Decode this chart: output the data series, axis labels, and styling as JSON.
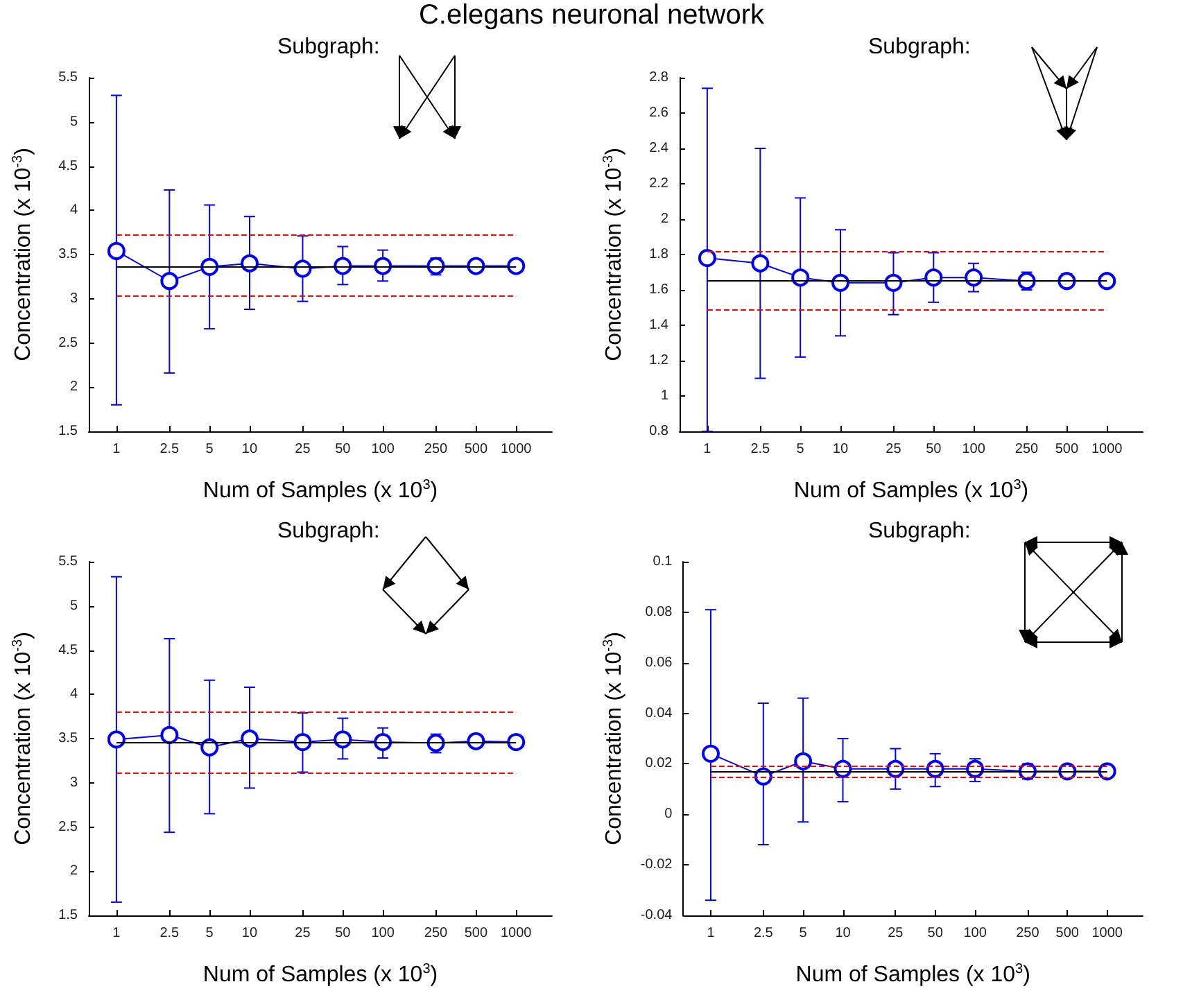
{
  "chart_data": [
    {
      "type": "line",
      "title": "C.elegans neuronal network",
      "annotations": [
        "Subgraph:"
      ],
      "xlabel": "Num of Samples (x 10$^{3}$)",
      "ylabel": "Concentration (x 10$^{-3}$)",
      "x": [
        1,
        2.5,
        5,
        10,
        25,
        50,
        100,
        250,
        500,
        1000
      ],
      "log": "x",
      "xlim": [
        0.62,
        1860
      ],
      "xticks": [
        1,
        2.5,
        5,
        10,
        25,
        50,
        100,
        250,
        500,
        1000
      ],
      "ylim": [
        1.5,
        5.5
      ],
      "yticks": [
        1.5,
        2,
        2.5,
        3,
        3.5,
        4,
        4.5,
        5,
        5.5
      ],
      "grid": false,
      "marker": "circle",
      "line_style": "solid",
      "series": [
        {
          "color": "#0000ff",
          "values": [
            3.54,
            3.2,
            3.36,
            3.4,
            3.34,
            3.37,
            3.37,
            3.37,
            3.37,
            3.37
          ],
          "errors": [
            [
              1.8,
              5.3
            ],
            [
              2.16,
              4.23
            ],
            [
              2.66,
              4.06
            ],
            [
              2.88,
              3.93
            ],
            [
              2.97,
              3.71
            ],
            [
              3.16,
              3.59
            ],
            [
              3.2,
              3.55
            ],
            [
              3.27,
              3.46
            ],
            [
              3.31,
              3.42
            ],
            [
              3.33,
              3.41
            ]
          ]
        }
      ],
      "ref_lines": [
        {
          "axis": "y",
          "value": 3.37,
          "color": "#000000",
          "line_style": "solid"
        },
        {
          "axis": "y",
          "value": 3.72,
          "color": "#ff0000",
          "line_style": "dashed"
        },
        {
          "axis": "y",
          "value": 3.04,
          "color": "#ff0000",
          "line_style": "dashed"
        }
      ]
    },
    {
      "type": "line",
      "annotations": [
        "Subgraph:"
      ],
      "xlabel": "Num of Samples (x 10$^{3}$)",
      "ylabel": "Concentration (x 10$^{-3}$)",
      "x": [
        1,
        2.5,
        5,
        10,
        25,
        50,
        100,
        250,
        500,
        1000
      ],
      "log": "x",
      "xlim": [
        0.62,
        1860
      ],
      "xticks": [
        1,
        2.5,
        5,
        10,
        25,
        50,
        100,
        250,
        500,
        1000
      ],
      "ylim": [
        0.8,
        2.8
      ],
      "yticks": [
        0.8,
        1,
        1.2,
        1.4,
        1.6,
        1.8,
        2,
        2.2,
        2.4,
        2.6,
        2.8
      ],
      "grid": false,
      "marker": "circle",
      "line_style": "solid",
      "series": [
        {
          "color": "#0000ff",
          "values": [
            1.78,
            1.75,
            1.67,
            1.64,
            1.64,
            1.67,
            1.67,
            1.65,
            1.65,
            1.65
          ],
          "errors": [
            [
              0.8,
              2.74
            ],
            [
              1.1,
              2.4
            ],
            [
              1.22,
              2.12
            ],
            [
              1.34,
              1.94
            ],
            [
              1.46,
              1.81
            ],
            [
              1.53,
              1.81
            ],
            [
              1.59,
              1.75
            ],
            [
              1.6,
              1.7
            ],
            [
              1.62,
              1.69
            ],
            [
              1.63,
              1.68
            ]
          ]
        }
      ],
      "ref_lines": [
        {
          "axis": "y",
          "value": 1.65,
          "color": "#000000",
          "line_style": "solid"
        },
        {
          "axis": "y",
          "value": 1.82,
          "color": "#ff0000",
          "line_style": "dashed"
        },
        {
          "axis": "y",
          "value": 1.49,
          "color": "#ff0000",
          "line_style": "dashed"
        }
      ]
    },
    {
      "type": "line",
      "annotations": [
        "Subgraph:"
      ],
      "xlabel": "Num of Samples (x 10$^{3}$)",
      "ylabel": "Concentration (x 10$^{-3}$)",
      "x": [
        1,
        2.5,
        5,
        10,
        25,
        50,
        100,
        250,
        500,
        1000
      ],
      "log": "x",
      "xlim": [
        0.62,
        1860
      ],
      "xticks": [
        1,
        2.5,
        5,
        10,
        25,
        50,
        100,
        250,
        500,
        1000
      ],
      "ylim": [
        1.5,
        5.5
      ],
      "yticks": [
        1.5,
        2,
        2.5,
        3,
        3.5,
        4,
        4.5,
        5,
        5.5
      ],
      "grid": false,
      "marker": "circle",
      "line_style": "solid",
      "series": [
        {
          "color": "#0000ff",
          "values": [
            3.49,
            3.54,
            3.4,
            3.5,
            3.46,
            3.49,
            3.46,
            3.45,
            3.47,
            3.46
          ],
          "errors": [
            [
              1.65,
              5.33
            ],
            [
              2.44,
              4.63
            ],
            [
              2.65,
              4.16
            ],
            [
              2.94,
              4.08
            ],
            [
              3.12,
              3.79
            ],
            [
              3.27,
              3.73
            ],
            [
              3.28,
              3.62
            ],
            [
              3.34,
              3.55
            ],
            [
              3.41,
              3.54
            ],
            [
              3.4,
              3.53
            ]
          ]
        }
      ],
      "ref_lines": [
        {
          "axis": "y",
          "value": 3.46,
          "color": "#000000",
          "line_style": "solid"
        },
        {
          "axis": "y",
          "value": 3.8,
          "color": "#ff0000",
          "line_style": "dashed"
        },
        {
          "axis": "y",
          "value": 3.11,
          "color": "#ff0000",
          "line_style": "dashed"
        }
      ]
    },
    {
      "type": "line",
      "annotations": [
        "Subgraph:"
      ],
      "xlabel": "Num of Samples (x 10$^{3}$)",
      "ylabel": "Concentration (x 10$^{-3}$)",
      "x": [
        1,
        2.5,
        5,
        10,
        25,
        50,
        100,
        250,
        500,
        1000
      ],
      "log": "x",
      "xlim": [
        0.62,
        1860
      ],
      "xticks": [
        1,
        2.5,
        5,
        10,
        25,
        50,
        100,
        250,
        500,
        1000
      ],
      "ylim": [
        -0.04,
        0.1
      ],
      "yticks": [
        -0.04,
        -0.02,
        0,
        0.02,
        0.04,
        0.06,
        0.08,
        0.1
      ],
      "grid": false,
      "marker": "circle",
      "line_style": "solid",
      "series": [
        {
          "color": "#0000ff",
          "values": [
            0.024,
            0.015,
            0.021,
            0.018,
            0.018,
            0.018,
            0.018,
            0.017,
            0.017,
            0.017
          ],
          "errors": [
            [
              -0.034,
              0.081
            ],
            [
              -0.012,
              0.044
            ],
            [
              -0.003,
              0.046
            ],
            [
              0.005,
              0.03
            ],
            [
              0.01,
              0.026
            ],
            [
              0.011,
              0.024
            ],
            [
              0.013,
              0.022
            ],
            [
              0.014,
              0.02
            ],
            [
              0.016,
              0.019
            ],
            [
              0.016,
              0.019
            ]
          ]
        }
      ],
      "ref_lines": [
        {
          "axis": "y",
          "value": 0.017,
          "color": "#000000",
          "line_style": "solid"
        },
        {
          "axis": "y",
          "value": 0.019,
          "color": "#ff0000",
          "line_style": "dashed"
        },
        {
          "axis": "y",
          "value": 0.015,
          "color": "#ff0000",
          "line_style": "dashed"
        }
      ]
    }
  ]
}
